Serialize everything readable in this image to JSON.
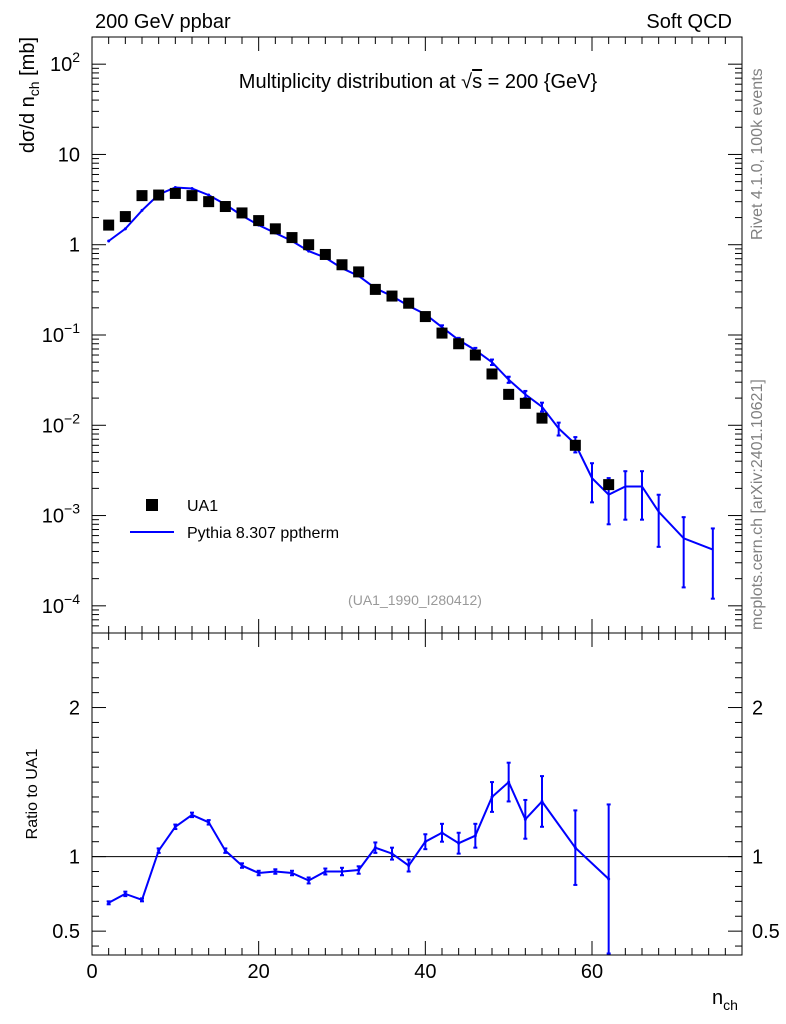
{
  "header": {
    "left": "200 GeV ppbar",
    "right": "Soft QCD"
  },
  "side_labels": {
    "top": "Rivet 4.1.0,  100k events",
    "bottom": "mcplots.cern.ch [arXiv:2401.10621]"
  },
  "chart_data": [
    {
      "type": "scatter",
      "panel": "main",
      "title_prefix": "Multiplicity distribution at ",
      "title_sqrt": "√",
      "title_s": "s",
      "title_suffix": " = 200 {GeV}",
      "ylabel_main": "dσ/d n",
      "ylabel_sub": "ch",
      "ylabel_unit": " [mb]",
      "yscale": "log",
      "ylim": [
        5e-05,
        200
      ],
      "xlim": [
        0,
        78
      ],
      "y_ticks": [
        {
          "value": 100,
          "base": "10",
          "exp": "2"
        },
        {
          "value": 10,
          "base": "10",
          "exp": ""
        },
        {
          "value": 1,
          "base": "1",
          "exp": ""
        },
        {
          "value": 0.1,
          "base": "10",
          "exp": "−1"
        },
        {
          "value": 0.01,
          "base": "10",
          "exp": "−2"
        },
        {
          "value": 0.001,
          "base": "10",
          "exp": "−3"
        },
        {
          "value": 0.0001,
          "base": "10",
          "exp": "−4"
        }
      ],
      "annotation": "(UA1_1990_I280412)",
      "legend": [
        {
          "name": "UA1",
          "marker": "square",
          "color": "#000000"
        },
        {
          "name": "Pythia 8.307 pptherm",
          "marker": "line",
          "color": "#0000ff"
        }
      ],
      "series": [
        {
          "name": "UA1",
          "x": [
            2,
            4,
            6,
            8,
            10,
            12,
            14,
            16,
            18,
            20,
            22,
            24,
            26,
            28,
            30,
            32,
            34,
            36,
            38,
            40,
            42,
            44,
            46,
            48,
            50,
            52,
            54,
            58,
            62
          ],
          "y": [
            1.65,
            2.05,
            3.5,
            3.55,
            3.7,
            3.5,
            3.0,
            2.65,
            2.25,
            1.85,
            1.5,
            1.2,
            1.0,
            0.78,
            0.6,
            0.5,
            0.32,
            0.27,
            0.225,
            0.16,
            0.105,
            0.08,
            0.06,
            0.037,
            0.022,
            0.0175,
            0.012,
            0.006,
            0.0022
          ]
        },
        {
          "name": "Pythia 8.307 pptherm",
          "x": [
            2,
            4,
            6,
            8,
            10,
            12,
            14,
            16,
            18,
            20,
            22,
            24,
            26,
            28,
            30,
            32,
            34,
            36,
            38,
            40,
            42,
            44,
            46,
            48,
            50,
            52,
            54,
            56,
            58,
            60,
            62,
            64,
            66,
            68,
            71,
            74.5
          ],
          "y": [
            1.1,
            1.5,
            2.4,
            3.6,
            4.3,
            4.2,
            3.55,
            2.8,
            2.1,
            1.65,
            1.35,
            1.1,
            0.85,
            0.72,
            0.55,
            0.45,
            0.33,
            0.27,
            0.21,
            0.17,
            0.122,
            0.088,
            0.068,
            0.05,
            0.032,
            0.022,
            0.016,
            0.0092,
            0.0062,
            0.0026,
            0.0017,
            0.0021,
            0.0021,
            0.0011,
            0.00056,
            0.00042
          ],
          "err_lo": [
            0,
            0,
            0,
            0,
            0,
            0,
            0,
            0,
            0,
            0,
            0,
            0,
            0,
            0,
            0,
            0,
            0,
            0,
            0,
            0,
            0.006,
            0.005,
            0.004,
            0.0035,
            0.0025,
            0.002,
            0.0018,
            0.0015,
            0.0012,
            0.0012,
            0.0009,
            0.0012,
            0.0012,
            0.00065,
            0.0004,
            0.0003
          ],
          "err_hi": [
            0,
            0,
            0,
            0,
            0,
            0,
            0,
            0,
            0,
            0,
            0,
            0,
            0,
            0,
            0,
            0,
            0,
            0,
            0,
            0,
            0.006,
            0.005,
            0.004,
            0.0035,
            0.0025,
            0.002,
            0.0018,
            0.0015,
            0.0012,
            0.0012,
            0.0009,
            0.001,
            0.001,
            0.0006,
            0.0004,
            0.0003
          ]
        }
      ]
    },
    {
      "type": "line",
      "panel": "ratio",
      "ylabel": "Ratio to UA1",
      "xlabel_main": "n",
      "xlabel_sub": "ch",
      "xlim": [
        0,
        78
      ],
      "ylim": [
        0.34,
        2.5
      ],
      "x_ticks": [
        "0",
        "20",
        "40",
        "60"
      ],
      "y_ticks": [
        "0.5",
        "1",
        "2"
      ],
      "reference_line": 1,
      "series": [
        {
          "name": "Pythia 8.307 pptherm / UA1",
          "x": [
            2,
            4,
            6,
            8,
            10,
            12,
            14,
            16,
            18,
            20,
            22,
            24,
            26,
            28,
            30,
            32,
            34,
            36,
            38,
            40,
            42,
            44,
            46,
            48,
            50,
            52,
            54,
            58,
            62
          ],
          "y": [
            0.69,
            0.75,
            0.71,
            1.04,
            1.2,
            1.28,
            1.23,
            1.04,
            0.94,
            0.89,
            0.9,
            0.89,
            0.84,
            0.9,
            0.9,
            0.91,
            1.06,
            1.02,
            0.94,
            1.1,
            1.16,
            1.09,
            1.14,
            1.4,
            1.5,
            1.25,
            1.37,
            1.06,
            0.85
          ],
          "err": [
            0.01,
            0.015,
            0.01,
            0.015,
            0.015,
            0.015,
            0.015,
            0.015,
            0.015,
            0.015,
            0.015,
            0.015,
            0.02,
            0.02,
            0.025,
            0.025,
            0.035,
            0.04,
            0.04,
            0.05,
            0.06,
            0.07,
            0.08,
            0.1,
            0.13,
            0.13,
            0.17,
            0.25,
            0.5
          ]
        }
      ]
    }
  ],
  "colors": {
    "mc": "#0000ff",
    "data": "#000000",
    "side_text": "#808080",
    "annotation": "#999999"
  }
}
